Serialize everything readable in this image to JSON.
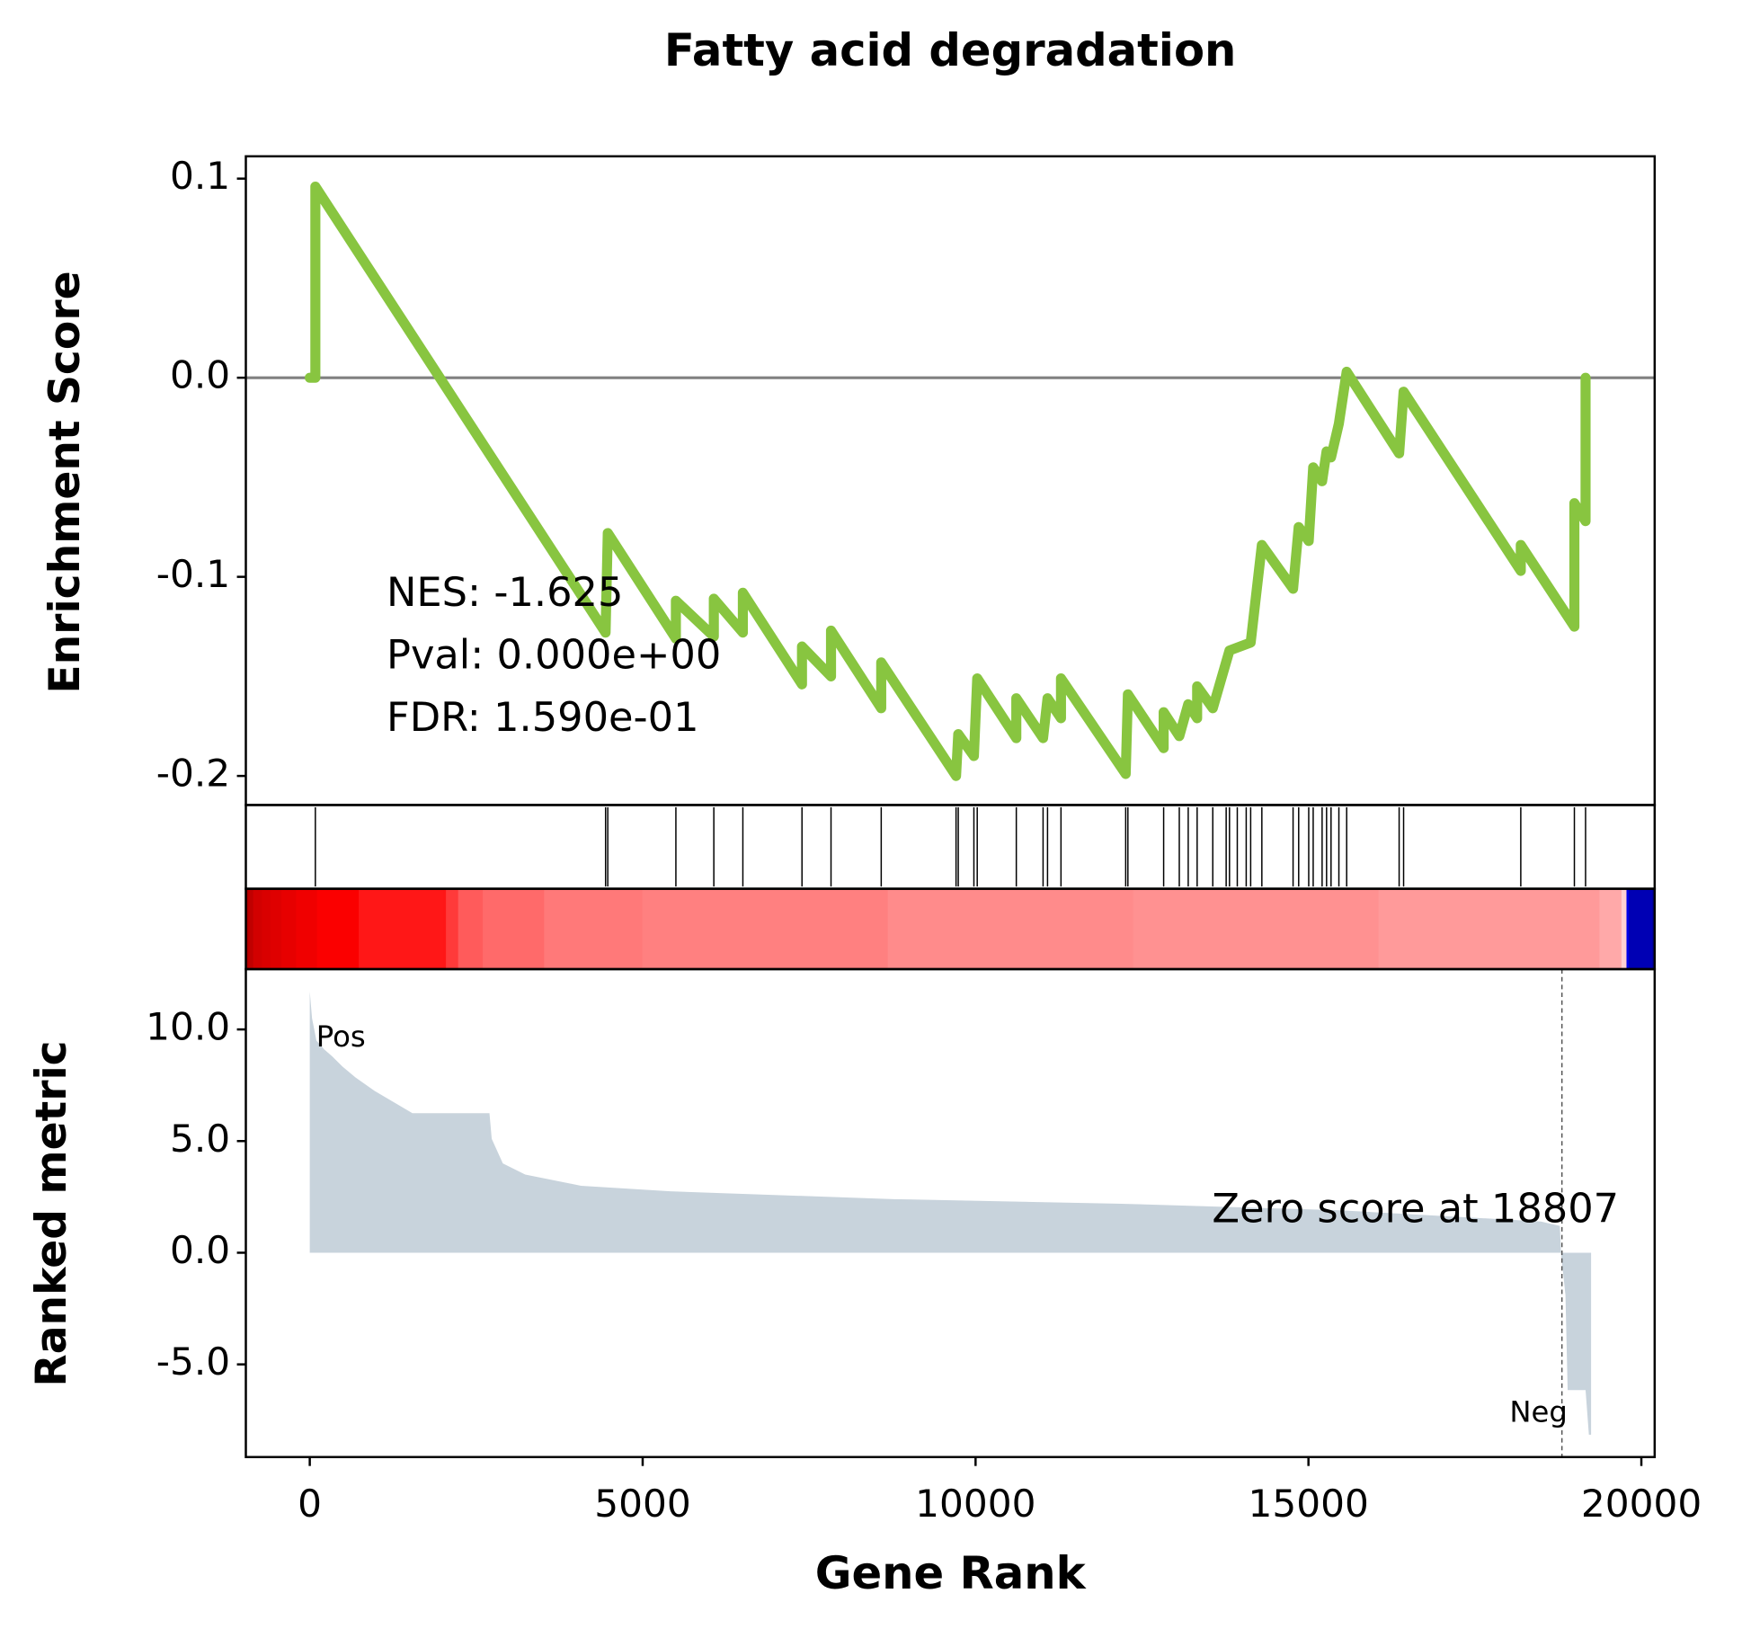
{
  "chart_data": [
    {
      "type": "line",
      "title": "Fatty acid degradation",
      "ylabel": "Enrichment Score",
      "color": "#88c540",
      "xlim": [
        -960,
        20200
      ],
      "ylim": [
        -0.2146,
        0.1112
      ],
      "yticks": [
        0.1,
        {
          "value": 0,
          "label": "0.0"
        },
        -0.1,
        -0.2
      ],
      "hline": 0,
      "annotations": [
        "NES: -1.625",
        "Pval: 0.000e+00",
        "FDR: 1.590e-01"
      ],
      "x": [
        0,
        84,
        84,
        4443,
        4476,
        5499,
        5499,
        6069,
        6069,
        6505,
        6505,
        7393,
        7393,
        7829,
        7829,
        8583,
        8583,
        9707,
        9740,
        9975,
        10025,
        10612,
        10612,
        11014,
        11081,
        11283,
        11283,
        12255,
        12288,
        12825,
        12825,
        13060,
        13194,
        13328,
        13328,
        13563,
        13814,
        14132,
        14300,
        14769,
        14853,
        15004,
        15071,
        15205,
        15272,
        15339,
        15457,
        15574,
        16362,
        16429,
        18189,
        18189,
        18994,
        18994,
        19162,
        19162
      ],
      "y": [
        0,
        0,
        0.096,
        -0.128,
        -0.078,
        -0.131,
        -0.112,
        -0.13,
        -0.111,
        -0.128,
        -0.108,
        -0.154,
        -0.135,
        -0.15,
        -0.127,
        -0.166,
        -0.143,
        -0.2,
        -0.179,
        -0.19,
        -0.151,
        -0.181,
        -0.161,
        -0.181,
        -0.161,
        -0.171,
        -0.151,
        -0.199,
        -0.159,
        -0.186,
        -0.168,
        -0.18,
        -0.164,
        -0.171,
        -0.155,
        -0.166,
        -0.137,
        -0.133,
        -0.084,
        -0.106,
        -0.075,
        -0.082,
        -0.045,
        -0.052,
        -0.037,
        -0.04,
        -0.023,
        0.003,
        -0.038,
        -0.007,
        -0.097,
        -0.084,
        -0.125,
        -0.063,
        -0.072,
        0
      ]
    },
    {
      "type": "rug",
      "xlim": [
        -960,
        20200
      ],
      "x": [
        84,
        4443,
        4476,
        5499,
        6069,
        6505,
        7393,
        7829,
        8583,
        9707,
        9740,
        9975,
        10025,
        10612,
        11014,
        11081,
        11283,
        12255,
        12288,
        12825,
        13060,
        13194,
        13328,
        13563,
        13764,
        13814,
        13931,
        14065,
        14132,
        14300,
        14769,
        14853,
        15004,
        15071,
        15205,
        15272,
        15339,
        15457,
        15574,
        16362,
        16429,
        18189,
        18994,
        19162
      ]
    },
    {
      "type": "area",
      "xlabel": "Gene Rank",
      "ylabel": "Ranked metric",
      "color": "#c8d3dc",
      "xlim": [
        -960,
        20200
      ],
      "ylim": [
        -9.15,
        12.7
      ],
      "xticks": [
        0,
        5000,
        10000,
        15000,
        20000
      ],
      "yticks": [
        {
          "value": 10,
          "label": "10.0"
        },
        {
          "value": 5,
          "label": "5.0"
        },
        {
          "value": 0,
          "label": "0.0"
        },
        {
          "value": -5,
          "label": "-5.0"
        }
      ],
      "pos_label": "Pos",
      "neg_label": "Neg",
      "zero_annotation": "Zero score at 18807",
      "zero_rank": 18807,
      "x": [
        0,
        34,
        100,
        218,
        335,
        486,
        687,
        972,
        1542,
        2699,
        2733,
        2900,
        3236,
        4074,
        5415,
        8768,
        12121,
        15474,
        18491,
        18776,
        18793,
        18860,
        18893,
        19162,
        19212,
        19245
      ],
      "y": [
        11.7,
        10.5,
        9.5,
        9.1,
        8.8,
        8.35,
        7.85,
        7.25,
        6.25,
        6.25,
        5.1,
        4.0,
        3.5,
        3.0,
        2.75,
        2.4,
        2.2,
        1.9,
        1.4,
        1.2,
        0,
        -1.9,
        -6.15,
        -6.15,
        -8.15,
        -8.15
      ]
    }
  ]
}
